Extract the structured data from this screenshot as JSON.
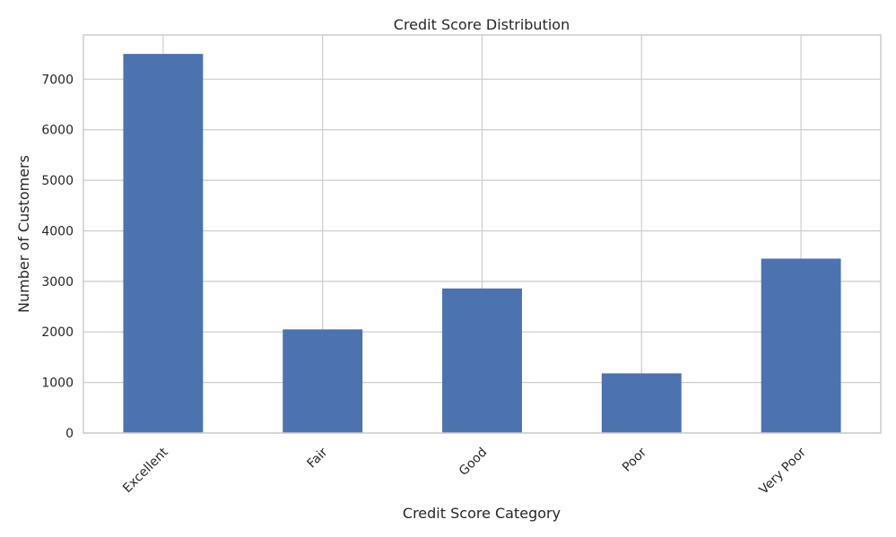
{
  "chart_data": {
    "type": "bar",
    "title": "Credit Score Distribution",
    "xlabel": "Credit Score Category",
    "ylabel": "Number of Customers",
    "categories": [
      "Excellent",
      "Fair",
      "Good",
      "Poor",
      "Very Poor"
    ],
    "values": [
      7500,
      2050,
      2860,
      1180,
      3450
    ],
    "ylim": [
      0,
      7875
    ],
    "yticks": [
      0,
      1000,
      2000,
      3000,
      4000,
      5000,
      6000,
      7000
    ],
    "grid": true,
    "bar_color": "#4c72b0",
    "grid_color": "#cccccc",
    "text_color": "#262626",
    "xtick_rotation_deg": 45
  }
}
